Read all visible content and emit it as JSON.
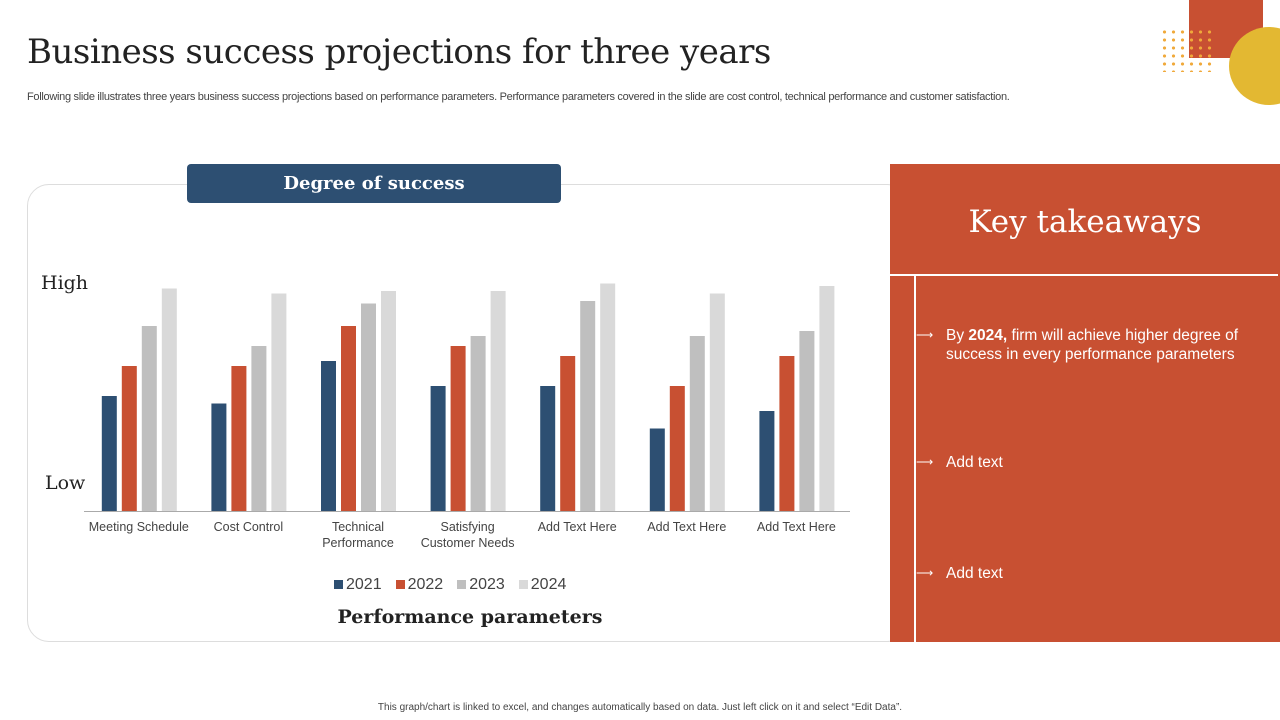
{
  "title": "Business success projections for three years",
  "subtitle": "Following slide illustrates three years business success projections based on performance parameters. Performance parameters covered in the slide are cost control, technical performance and customer satisfaction.",
  "chart_data": {
    "type": "bar",
    "title": "Degree of success",
    "xlabel": "Performance parameters",
    "ylabel_high": "High",
    "ylabel_low": "Low",
    "ylim": [
      0,
      10
    ],
    "categories": [
      [
        "Meeting Schedule"
      ],
      [
        "Cost Control"
      ],
      [
        "Technical",
        "Performance"
      ],
      [
        "Satisfying",
        "Customer Needs"
      ],
      [
        "Add Text Here"
      ],
      [
        "Add Text Here"
      ],
      [
        "Add Text Here"
      ]
    ],
    "series": [
      {
        "name": "2021",
        "color": "#2d4f72",
        "values": [
          4.6,
          4.3,
          6.0,
          5.0,
          5.0,
          3.3,
          4.0
        ]
      },
      {
        "name": "2022",
        "color": "#c85032",
        "values": [
          5.8,
          5.8,
          7.4,
          6.6,
          6.2,
          5.0,
          6.2
        ]
      },
      {
        "name": "2023",
        "color": "#bfbfbf",
        "values": [
          7.4,
          6.6,
          8.3,
          7.0,
          8.4,
          7.0,
          7.2
        ]
      },
      {
        "name": "2024",
        "color": "#d9d9d9",
        "values": [
          8.9,
          8.7,
          8.8,
          8.8,
          9.1,
          8.7,
          9.0
        ]
      }
    ]
  },
  "takeaways": {
    "title": "Key takeaways",
    "items": [
      {
        "prefix": "By ",
        "bold": "2024,",
        "rest": " firm will achieve higher degree of success in every performance parameters"
      },
      {
        "prefix": "Add text",
        "bold": "",
        "rest": ""
      },
      {
        "prefix": "Add text",
        "bold": "",
        "rest": ""
      }
    ]
  },
  "footer": "This graph/chart is linked to excel, and changes automatically based on data. Just left click on it and select “Edit Data”."
}
